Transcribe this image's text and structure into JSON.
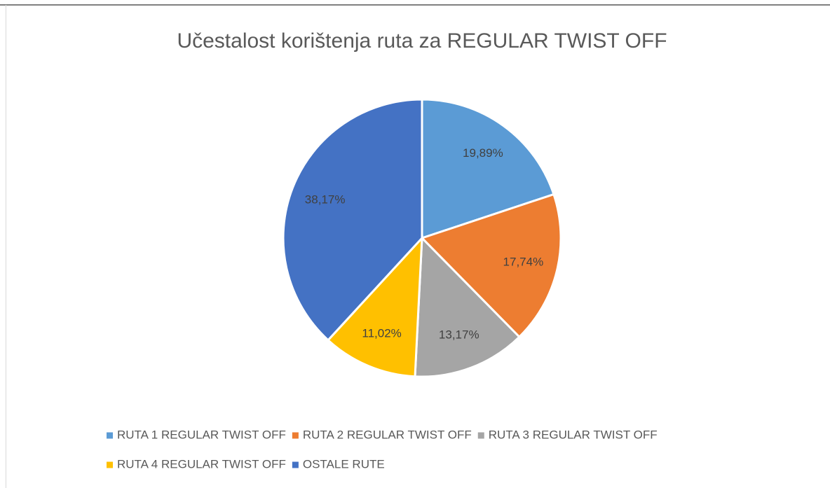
{
  "chart_data": {
    "type": "pie",
    "title": "Učestalost korištenja ruta za REGULAR TWIST OFF",
    "categories": [
      "RUTA 1 REGULAR TWIST OFF",
      "RUTA 2 REGULAR TWIST OFF",
      "RUTA 3 REGULAR TWIST OFF",
      "RUTA 4 REGULAR TWIST OFF",
      "OSTALE RUTE"
    ],
    "values": [
      19.89,
      17.74,
      13.17,
      11.02,
      38.17
    ],
    "value_labels": [
      "19,89%",
      "17,74%",
      "13,17%",
      "11,02%",
      "38,17%"
    ],
    "colors": [
      "#5b9bd5",
      "#ed7d31",
      "#a5a5a5",
      "#ffc000",
      "#4472c4"
    ],
    "legend": "bottom"
  }
}
